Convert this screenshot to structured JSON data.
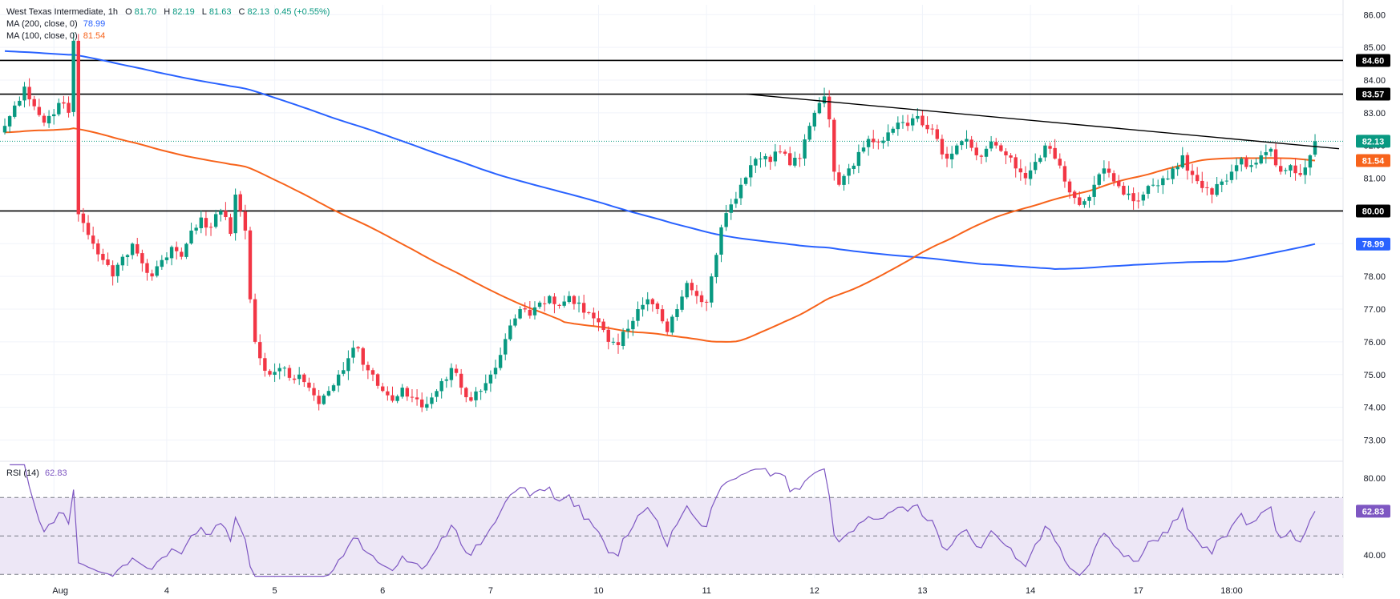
{
  "legend": {
    "symbol": "West Texas Intermediate",
    "interval": "1h",
    "o_label": "O",
    "o": "81.70",
    "h_label": "H",
    "h": "82.19",
    "l_label": "L",
    "l": "81.63",
    "c_label": "C",
    "c": "82.13",
    "change": "0.45 (+0.55%)",
    "ma200_label": "MA (200, close, 0)",
    "ma200_value": "78.99",
    "ma100_label": "MA (100, close, 0)",
    "ma100_value": "81.54",
    "rsi_label": "RSI (14)",
    "rsi_value": "62.83"
  },
  "colors": {
    "up": "#089981",
    "down": "#f23645",
    "ma200": "#2962ff",
    "ma100": "#f7631b",
    "rsi": "#7e57c2",
    "rsi_band": "#ede7f6",
    "level": "#000000",
    "grid": "#f0f3fa"
  },
  "chart_data": [
    {
      "type": "candlestick",
      "title": "West Texas Intermediate, 1h",
      "xlabel": "",
      "ylabel": "",
      "ylim": [
        72.4,
        86.3
      ],
      "y_ticks": [
        "73.00",
        "74.00",
        "75.00",
        "76.00",
        "77.00",
        "78.00",
        "79.00",
        "80.00",
        "81.00",
        "82.00",
        "83.00",
        "84.00",
        "85.00",
        "86.00"
      ],
      "x_ticks": [
        "Aug",
        "4",
        "5",
        "6",
        "7",
        "10",
        "11",
        "12",
        "13",
        "14",
        "17",
        "18:00"
      ],
      "horizontal_levels": [
        "84.60",
        "83.57",
        "80.00"
      ],
      "last_price": "82.13",
      "price_tags": [
        {
          "value": "84.60",
          "color": "#000000"
        },
        {
          "value": "83.57",
          "color": "#000000"
        },
        {
          "value": "82.13",
          "color": "#089981"
        },
        {
          "value": "81.54",
          "color": "#f7631b"
        },
        {
          "value": "80.00",
          "color": "#000000"
        },
        {
          "value": "78.99",
          "color": "#2962ff"
        }
      ],
      "trendline": [
        [
          83.57,
          "11"
        ],
        [
          82.0,
          "18:00"
        ]
      ],
      "close_path": [
        [
          0,
          82.6
        ],
        [
          4,
          83.8
        ],
        [
          6,
          83.2
        ],
        [
          8,
          82.7
        ],
        [
          11,
          83.3
        ],
        [
          13,
          83.0
        ],
        [
          14,
          85.2
        ],
        [
          15,
          79.9
        ],
        [
          18,
          79.0
        ],
        [
          20,
          78.5
        ],
        [
          22,
          78.0
        ],
        [
          24,
          78.6
        ],
        [
          26,
          79.0
        ],
        [
          28,
          78.4
        ],
        [
          30,
          78.0
        ],
        [
          32,
          78.5
        ],
        [
          34,
          78.9
        ],
        [
          36,
          78.6
        ],
        [
          38,
          79.4
        ],
        [
          40,
          79.8
        ],
        [
          42,
          79.5
        ],
        [
          44,
          80.0
        ],
        [
          46,
          79.3
        ],
        [
          47,
          80.5
        ],
        [
          48,
          80.0
        ],
        [
          49,
          79.4
        ],
        [
          50,
          77.3
        ],
        [
          51,
          76.0
        ],
        [
          52,
          75.5
        ],
        [
          54,
          75.0
        ],
        [
          56,
          75.2
        ],
        [
          58,
          74.9
        ],
        [
          60,
          75.0
        ],
        [
          62,
          74.6
        ],
        [
          64,
          74.1
        ],
        [
          66,
          74.5
        ],
        [
          68,
          75.0
        ],
        [
          70,
          75.5
        ],
        [
          72,
          75.8
        ],
        [
          73,
          75.3
        ],
        [
          75,
          75.0
        ],
        [
          77,
          74.5
        ],
        [
          79,
          74.2
        ],
        [
          81,
          74.6
        ],
        [
          83,
          74.3
        ],
        [
          85,
          74.0
        ],
        [
          87,
          74.3
        ],
        [
          89,
          74.8
        ],
        [
          91,
          75.2
        ],
        [
          93,
          74.6
        ],
        [
          95,
          74.2
        ],
        [
          97,
          74.5
        ],
        [
          99,
          75.0
        ],
        [
          101,
          75.6
        ],
        [
          103,
          76.5
        ],
        [
          105,
          77.0
        ],
        [
          107,
          76.8
        ],
        [
          109,
          77.2
        ],
        [
          111,
          77.4
        ],
        [
          113,
          77.1
        ],
        [
          115,
          77.4
        ],
        [
          117,
          77.2
        ],
        [
          119,
          76.9
        ],
        [
          121,
          76.6
        ],
        [
          123,
          76.0
        ],
        [
          125,
          75.9
        ],
        [
          127,
          76.4
        ],
        [
          129,
          77.0
        ],
        [
          131,
          77.3
        ],
        [
          133,
          77.0
        ],
        [
          135,
          76.3
        ],
        [
          137,
          77.0
        ],
        [
          139,
          77.8
        ],
        [
          141,
          77.4
        ],
        [
          143,
          77.2
        ],
        [
          144,
          78.0
        ],
        [
          146,
          79.5
        ],
        [
          148,
          80.2
        ],
        [
          150,
          80.8
        ],
        [
          152,
          81.4
        ],
        [
          154,
          81.6
        ],
        [
          156,
          81.5
        ],
        [
          158,
          81.8
        ],
        [
          160,
          81.4
        ],
        [
          162,
          81.6
        ],
        [
          164,
          82.6
        ],
        [
          166,
          83.3
        ],
        [
          167,
          83.5
        ],
        [
          168,
          82.8
        ],
        [
          169,
          81.2
        ],
        [
          170,
          80.8
        ],
        [
          172,
          81.3
        ],
        [
          174,
          81.8
        ],
        [
          176,
          82.2
        ],
        [
          178,
          82.1
        ],
        [
          180,
          82.4
        ],
        [
          182,
          82.7
        ],
        [
          184,
          82.6
        ],
        [
          186,
          82.9
        ],
        [
          188,
          82.5
        ],
        [
          190,
          82.2
        ],
        [
          192,
          81.6
        ],
        [
          194,
          82.0
        ],
        [
          196,
          82.2
        ],
        [
          198,
          81.7
        ],
        [
          200,
          81.9
        ],
        [
          202,
          82.0
        ],
        [
          204,
          81.7
        ],
        [
          206,
          81.3
        ],
        [
          208,
          81.0
        ],
        [
          210,
          81.5
        ],
        [
          212,
          82.0
        ],
        [
          214,
          81.6
        ],
        [
          216,
          80.9
        ],
        [
          218,
          80.4
        ],
        [
          220,
          80.3
        ],
        [
          222,
          80.8
        ],
        [
          224,
          81.3
        ],
        [
          226,
          80.9
        ],
        [
          228,
          80.5
        ],
        [
          230,
          80.3
        ],
        [
          232,
          80.5
        ],
        [
          234,
          80.8
        ],
        [
          236,
          81.0
        ],
        [
          238,
          81.3
        ],
        [
          240,
          81.7
        ],
        [
          242,
          81.1
        ],
        [
          244,
          80.7
        ],
        [
          246,
          80.5
        ],
        [
          248,
          80.9
        ],
        [
          250,
          81.2
        ],
        [
          252,
          81.6
        ],
        [
          254,
          81.4
        ],
        [
          256,
          81.7
        ],
        [
          258,
          81.9
        ],
        [
          260,
          81.2
        ],
        [
          262,
          81.4
        ],
        [
          264,
          81.1
        ],
        [
          266,
          81.7
        ],
        [
          267,
          82.13
        ]
      ]
    },
    {
      "type": "line",
      "title": "RSI (14)",
      "ylim": [
        28,
        88
      ],
      "y_ticks": [
        "40.00",
        "80.00"
      ],
      "bands": [
        30,
        50,
        70
      ],
      "last_value": "62.83"
    }
  ]
}
